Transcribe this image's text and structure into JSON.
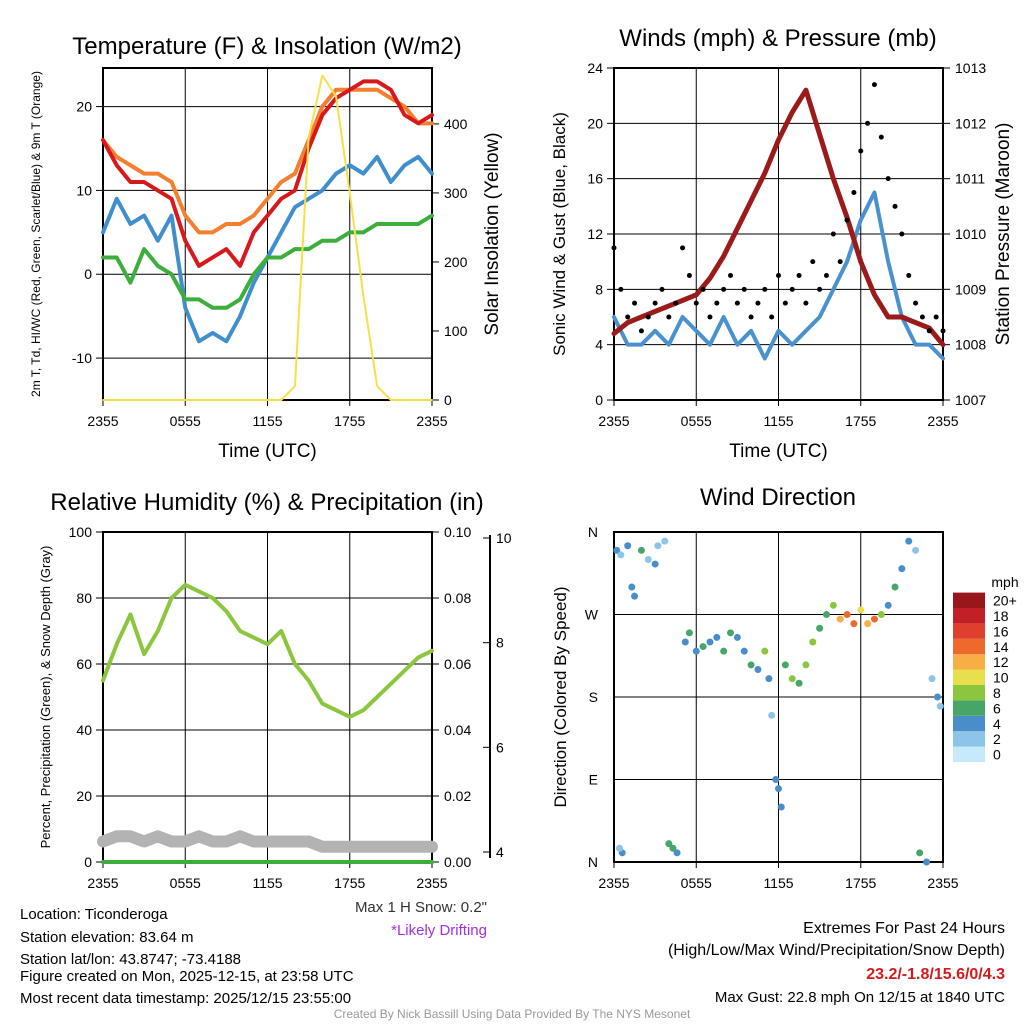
{
  "chart_data": [
    {
      "type": "line",
      "title": "Temperature (F) & Insolation (W/m2)",
      "xlabel": "Time (UTC)",
      "ylabel": "2m T, Td, HI/WC (Red, Green, Scarlet/Blue) & 9m T (Orange)",
      "ylabel2": "Solar Insolation (Yellow)",
      "xticks": [
        "2355",
        "0555",
        "1155",
        "1755",
        "2355"
      ],
      "yticks": [
        "-10",
        "0",
        "10",
        "20"
      ],
      "yticks2": [
        "0",
        "100",
        "200",
        "300",
        "400"
      ],
      "ylim": [
        -15,
        24.6
      ],
      "ylim2": [
        0,
        481
      ],
      "series": [
        {
          "name": "9m T",
          "color": "#f47f2e",
          "values": [
            16,
            14,
            13,
            12,
            12,
            11,
            7,
            5,
            5,
            6,
            6,
            7,
            9,
            11,
            12,
            16,
            20,
            22,
            22,
            22,
            22,
            21,
            20,
            18,
            18
          ]
        },
        {
          "name": "2m T",
          "color": "#d7191c",
          "values": [
            16,
            13,
            11,
            11,
            10,
            9,
            4,
            1,
            2,
            3,
            1,
            5,
            7,
            9,
            10,
            15,
            19,
            21,
            22,
            23,
            23,
            22,
            19,
            18,
            19
          ]
        },
        {
          "name": "HI/WC",
          "color": "#3f8fcf",
          "values": [
            5,
            9,
            6,
            7,
            4,
            7,
            -4,
            -8,
            -7,
            -8,
            -5,
            -1,
            2,
            5,
            8,
            9,
            10,
            12,
            13,
            12,
            14,
            11,
            13,
            14,
            12
          ]
        },
        {
          "name": "Td",
          "color": "#3cae3c",
          "values": [
            2,
            2,
            -1,
            3,
            1,
            0,
            -3,
            -3,
            -4,
            -4,
            -3,
            0,
            2,
            2,
            3,
            3,
            4,
            4,
            5,
            5,
            6,
            6,
            6,
            6,
            7
          ]
        },
        {
          "name": "Solar",
          "color": "#f7df4a",
          "axis": 2,
          "values": [
            0,
            0,
            0,
            0,
            0,
            0,
            0,
            0,
            0,
            0,
            0,
            0,
            0,
            0,
            20,
            380,
            470,
            440,
            300,
            150,
            20,
            0,
            0,
            0,
            0
          ]
        }
      ]
    },
    {
      "type": "line",
      "title": "Winds (mph) & Pressure (mb)",
      "xlabel": "Time (UTC)",
      "ylabel": "Sonic Wind & Gust (Blue, Black)",
      "ylabel2": "Station Pressure (Maroon)",
      "xticks": [
        "2355",
        "0555",
        "1155",
        "1755",
        "2355"
      ],
      "yticks": [
        "0",
        "4",
        "8",
        "12",
        "16",
        "20",
        "24"
      ],
      "yticks2": [
        "1007",
        "1008",
        "1009",
        "1010",
        "1011",
        "1012",
        "1013"
      ],
      "ylim": [
        0,
        24
      ],
      "ylim2": [
        1007,
        1013
      ],
      "series": [
        {
          "name": "Wind",
          "color": "#4a92cf",
          "values": [
            6,
            4,
            4,
            5,
            4,
            6,
            5,
            4,
            6,
            4,
            5,
            3,
            5,
            4,
            5,
            6,
            8,
            10,
            13,
            15,
            10,
            6,
            4,
            4,
            3
          ]
        },
        {
          "name": "Pressure",
          "color": "#9b1b1b",
          "axis": 2,
          "values": [
            1008.2,
            1008.4,
            1008.5,
            1008.6,
            1008.7,
            1008.8,
            1008.9,
            1009.2,
            1009.6,
            1010.1,
            1010.6,
            1011.1,
            1011.7,
            1012.2,
            1012.6,
            1011.8,
            1011,
            1010.3,
            1009.5,
            1008.9,
            1008.5,
            1008.5,
            1008.4,
            1008.3,
            1008.0
          ]
        },
        {
          "name": "Gust",
          "color": "#000000",
          "type": "scatter",
          "values": [
            11,
            8,
            6,
            7,
            5,
            6,
            7,
            8,
            6,
            7,
            11,
            9,
            7,
            8,
            6,
            7,
            8,
            9,
            7,
            8,
            6,
            7,
            8,
            6,
            9,
            7,
            8,
            9,
            7,
            10,
            8,
            9,
            12,
            10,
            13,
            15,
            18,
            20,
            22.8,
            19,
            16,
            14,
            12,
            9,
            7,
            6,
            5,
            6,
            5
          ]
        }
      ]
    },
    {
      "type": "line",
      "title": "Relative Humidity (%) & Precipitation (in)",
      "ylabel": "Percent, Precipitation (Green), & Snow Depth (Gray)",
      "xticks": [
        "2355",
        "0555",
        "1155",
        "1755",
        "2355"
      ],
      "yticks": [
        "0",
        "20",
        "40",
        "60",
        "80",
        "100"
      ],
      "yticks2": [
        "0.00",
        "0.02",
        "0.04",
        "0.06",
        "0.08",
        "0.10"
      ],
      "yticks3": [
        "4",
        "6",
        "8",
        "10"
      ],
      "ylim": [
        0,
        100
      ],
      "ylim2": [
        0,
        0.1
      ],
      "ylim3": [
        4,
        10
      ],
      "series": [
        {
          "name": "RH",
          "color": "#8cc63f",
          "values": [
            55,
            66,
            75,
            63,
            70,
            80,
            84,
            82,
            80,
            76,
            70,
            68,
            66,
            70,
            60,
            55,
            48,
            46,
            44,
            46,
            50,
            54,
            58,
            62,
            64
          ]
        },
        {
          "name": "Snow Depth",
          "color": "#b3b3b3",
          "axis": 3,
          "values": [
            4.2,
            4.3,
            4.3,
            4.2,
            4.3,
            4.2,
            4.2,
            4.3,
            4.2,
            4.2,
            4.3,
            4.2,
            4.2,
            4.2,
            4.2,
            4.2,
            4.1,
            4.1,
            4.1,
            4.1,
            4.1,
            4.1,
            4.1,
            4.1,
            4.1
          ]
        },
        {
          "name": "Precipitation",
          "color": "#3cae3c",
          "axis": 2,
          "values": [
            0,
            0,
            0,
            0,
            0,
            0,
            0,
            0,
            0,
            0,
            0,
            0,
            0,
            0,
            0,
            0,
            0,
            0,
            0,
            0,
            0,
            0,
            0,
            0,
            0
          ]
        }
      ],
      "annotations": {
        "max_snow": "Max 1 H Snow: 0.2\"",
        "drifting": "*Likely Drifting"
      }
    },
    {
      "type": "scatter",
      "title": "Wind Direction",
      "ylabel": "Direction (Colored By Speed)",
      "xticks": [
        "2355",
        "0555",
        "1155",
        "1755",
        "2355"
      ],
      "yticks": [
        "N",
        "E",
        "S",
        "W",
        "N"
      ],
      "ylim": [
        0,
        360
      ],
      "points": [
        [
          0.2,
          340,
          3
        ],
        [
          0.5,
          335,
          1
        ],
        [
          1,
          345,
          4
        ],
        [
          1.3,
          300,
          3
        ],
        [
          1.5,
          290,
          4
        ],
        [
          2,
          340,
          5
        ],
        [
          2.5,
          330,
          2
        ],
        [
          3,
          325,
          4
        ],
        [
          3.2,
          345,
          1
        ],
        [
          3.7,
          350,
          2
        ],
        [
          4,
          20,
          5
        ],
        [
          4.3,
          15,
          6
        ],
        [
          4.6,
          10,
          4
        ],
        [
          0.6,
          10,
          4
        ],
        [
          0.4,
          15,
          2
        ],
        [
          5.2,
          240,
          3
        ],
        [
          5.5,
          250,
          6
        ],
        [
          6,
          230,
          4
        ],
        [
          6.5,
          235,
          5
        ],
        [
          7,
          240,
          3
        ],
        [
          7.5,
          245,
          4
        ],
        [
          8,
          230,
          5
        ],
        [
          8.5,
          250,
          6
        ],
        [
          9,
          245,
          4
        ],
        [
          9.5,
          230,
          3
        ],
        [
          10,
          215,
          5
        ],
        [
          10.5,
          210,
          4
        ],
        [
          11,
          230,
          8
        ],
        [
          11.3,
          200,
          3
        ],
        [
          11.5,
          160,
          2
        ],
        [
          11.8,
          90,
          4
        ],
        [
          12,
          80,
          3
        ],
        [
          12.2,
          60,
          3
        ],
        [
          12.5,
          215,
          5
        ],
        [
          13,
          200,
          7
        ],
        [
          13.5,
          195,
          6
        ],
        [
          14,
          215,
          8
        ],
        [
          14.5,
          240,
          7
        ],
        [
          15,
          255,
          6
        ],
        [
          15.5,
          270,
          5
        ],
        [
          16,
          280,
          7
        ],
        [
          16.5,
          265,
          12
        ],
        [
          17,
          270,
          13
        ],
        [
          17.5,
          260,
          14
        ],
        [
          18,
          275,
          10
        ],
        [
          18.5,
          260,
          12
        ],
        [
          19,
          265,
          14
        ],
        [
          19.5,
          270,
          7
        ],
        [
          20,
          280,
          3
        ],
        [
          20.5,
          300,
          5
        ],
        [
          21,
          320,
          3
        ],
        [
          21.5,
          350,
          4
        ],
        [
          22,
          340,
          2
        ],
        [
          22.3,
          10,
          6
        ],
        [
          22.8,
          0,
          4
        ],
        [
          23.2,
          200,
          2
        ],
        [
          23.6,
          180,
          3
        ],
        [
          23.8,
          170,
          1
        ]
      ],
      "colorbar": {
        "title": "mph",
        "labels": [
          "0",
          "2",
          "4",
          "6",
          "8",
          "10",
          "12",
          "14",
          "16",
          "18",
          "20+"
        ],
        "colors": [
          "#c6e9fb",
          "#8cc4ea",
          "#4a8ec9",
          "#46a567",
          "#8cc63f",
          "#e7e04c",
          "#f6ae45",
          "#ee6a2c",
          "#de3f2e",
          "#c21f26",
          "#97171b"
        ]
      }
    }
  ],
  "info": {
    "location": "Location: Ticonderoga",
    "elevation": "Station elevation: 83.64 m",
    "latlon": "Station lat/lon: 43.8747; -73.4188",
    "created": "Figure created on Mon, 2025-12-15, at 23:58 UTC",
    "recent": "Most recent data timestamp: 2025/12/15 23:55:00"
  },
  "extremes": {
    "title": "Extremes For Past 24 Hours",
    "subtitle": "(High/Low/Max Wind/Precipitation/Snow Depth)",
    "values": "23.2/-1.8/15.6/0/4.3",
    "gust": "Max Gust: 22.8 mph On 12/15 at 1840 UTC"
  },
  "credit": "Created By Nick Bassill Using Data Provided By The NYS Mesonet"
}
